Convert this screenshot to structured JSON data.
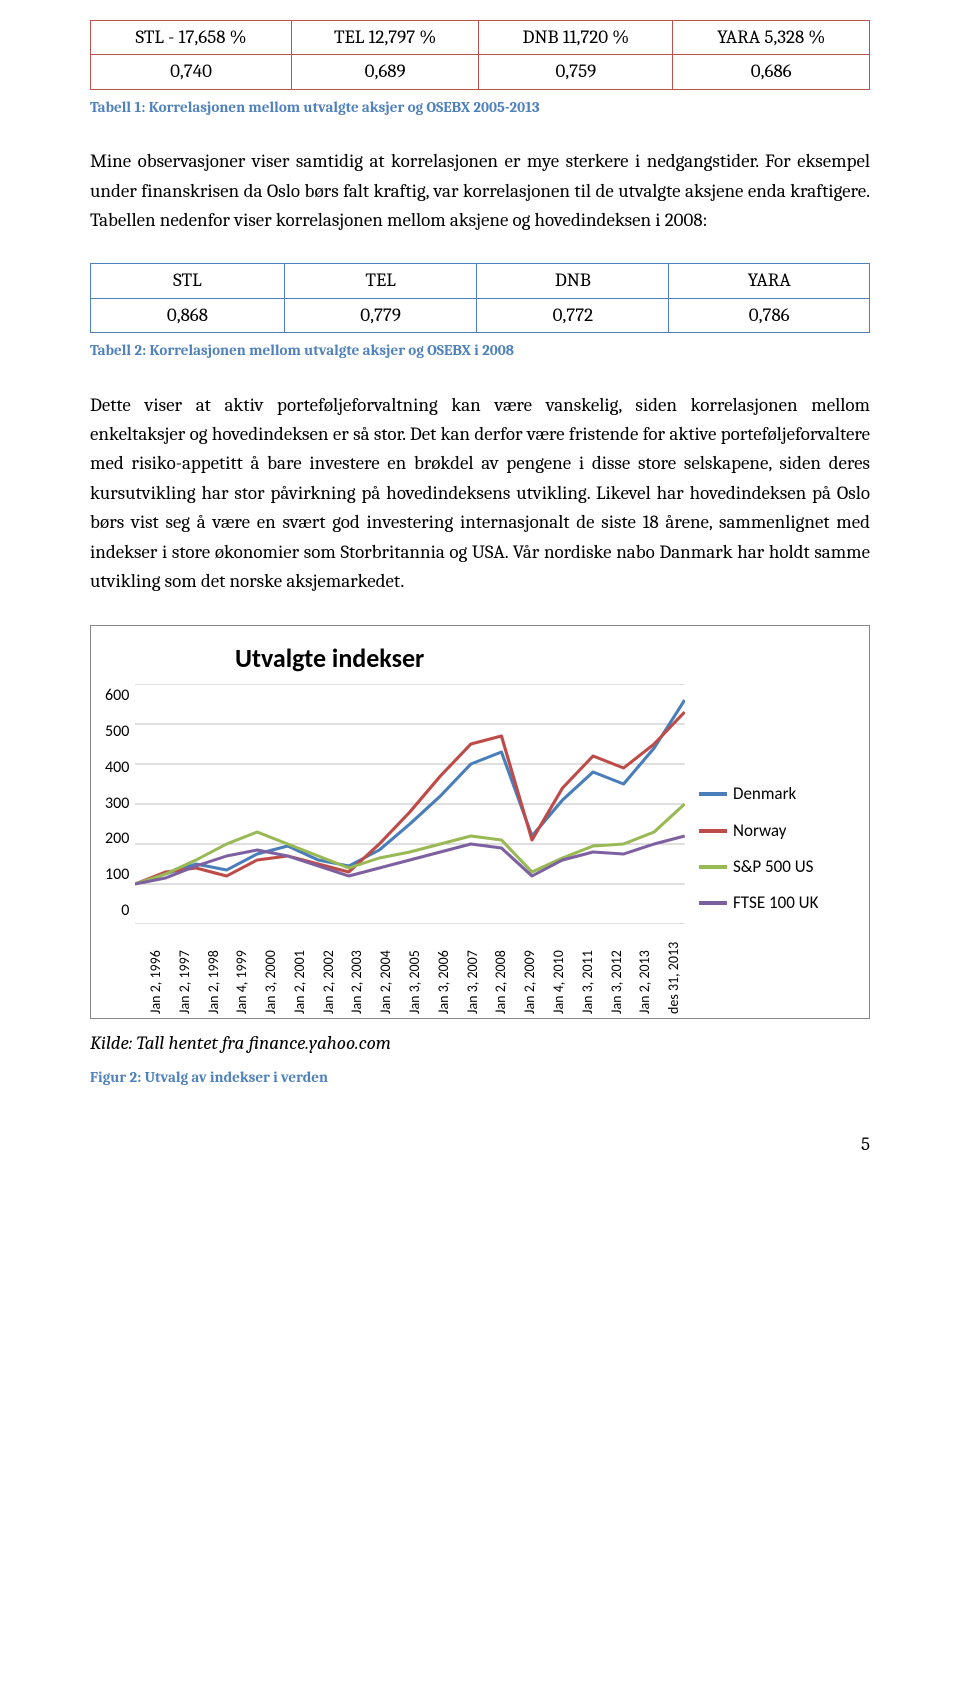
{
  "table1": {
    "border_color": "#c0504d",
    "headers": [
      "STL - 17,658 %",
      "TEL 12,797 %",
      "DNB 11,720 %",
      "YARA 5,328 %"
    ],
    "values": [
      "0,740",
      "0,689",
      "0,759",
      "0,686"
    ]
  },
  "caption1": {
    "text": "Tabell 1: Korrelasjonen mellom utvalgte aksjer og OSEBX 2005-2013",
    "color": "#4f81bd"
  },
  "para1": "Mine observasjoner viser samtidig at korrelasjonen er mye sterkere i nedgangstider. For eksempel under finanskrisen da Oslo børs falt kraftig, var korrelasjonen til de utvalgte aksjene enda kraftigere. Tabellen nedenfor viser korrelasjonen mellom aksjene og hovedindeksen i 2008:",
  "table2": {
    "border_color": "#4f81bd",
    "headers": [
      "STL",
      "TEL",
      "DNB",
      "YARA"
    ],
    "values": [
      "0,868",
      "0,779",
      "0,772",
      "0,786"
    ]
  },
  "caption2": {
    "text": "Tabell 2: Korrelasjonen mellom utvalgte aksjer og OSEBX i 2008",
    "color": "#4f81bd"
  },
  "para2": "Dette viser at aktiv porteføljeforvaltning kan være vanskelig, siden korrelasjonen mellom enkeltaksjer og hovedindeksen er så stor. Det kan derfor være fristende for aktive porteføljeforvaltere med risiko-appetitt å bare investere en brøkdel av pengene i disse store selskapene, siden deres kursutvikling har stor påvirkning på hovedindeksens utvikling. Likevel har hovedindeksen på Oslo børs vist seg å være en svært god investering internasjonalt de siste 18 årene, sammenlignet med indekser i store økonomier som Storbritannia og USA. Vår nordiske nabo Danmark har holdt samme utvikling som det norske aksjemarkedet.",
  "chart": {
    "type": "line",
    "title": "Utvalgte indekser",
    "title_fontsize": 26,
    "background_color": "#ffffff",
    "border_color": "#888888",
    "grid_color": "#bfbfbf",
    "axis_font": "Calibri",
    "axis_fontsize": 16,
    "ylim": [
      0,
      600
    ],
    "ytick_step": 100,
    "yticks": [
      "600",
      "500",
      "400",
      "300",
      "200",
      "100",
      "0"
    ],
    "xticks": [
      "Jan 2, 1996",
      "Jan 2, 1997",
      "Jan 2, 1998",
      "Jan 4, 1999",
      "Jan 3, 2000",
      "Jan 2, 2001",
      "Jan 2, 2002",
      "Jan 2, 2003",
      "Jan 2, 2004",
      "Jan 3, 2005",
      "Jan 3, 2006",
      "Jan 3, 2007",
      "Jan 2, 2008",
      "Jan 2, 2009",
      "Jan 4, 2010",
      "Jan 3, 2011",
      "Jan 3, 2012",
      "Jan 2, 2013",
      "des 31, 2013"
    ],
    "line_width": 3,
    "series": [
      {
        "name": "Denmark",
        "color": "#4a7ebb",
        "values": [
          100,
          125,
          150,
          135,
          175,
          195,
          160,
          145,
          185,
          250,
          320,
          400,
          430,
          220,
          310,
          380,
          350,
          440,
          560
        ]
      },
      {
        "name": "Norway",
        "color": "#be4b48",
        "values": [
          100,
          130,
          140,
          120,
          160,
          170,
          150,
          130,
          200,
          280,
          370,
          450,
          470,
          210,
          340,
          420,
          390,
          450,
          530
        ]
      },
      {
        "name": "S&P 500 US",
        "color": "#98b954",
        "values": [
          100,
          125,
          160,
          200,
          230,
          200,
          170,
          140,
          165,
          180,
          200,
          220,
          210,
          130,
          165,
          195,
          200,
          230,
          300
        ]
      },
      {
        "name": "FTSE 100 UK",
        "color": "#7d60a0",
        "values": [
          100,
          115,
          145,
          170,
          185,
          170,
          145,
          120,
          140,
          160,
          180,
          200,
          190,
          120,
          160,
          180,
          175,
          200,
          220
        ]
      }
    ]
  },
  "source": "Kilde: Tall hentet fra finance.yahoo.com",
  "caption3": {
    "text": "Figur 2: Utvalg av indekser i verden",
    "color": "#4f81bd"
  },
  "page_number": "5"
}
